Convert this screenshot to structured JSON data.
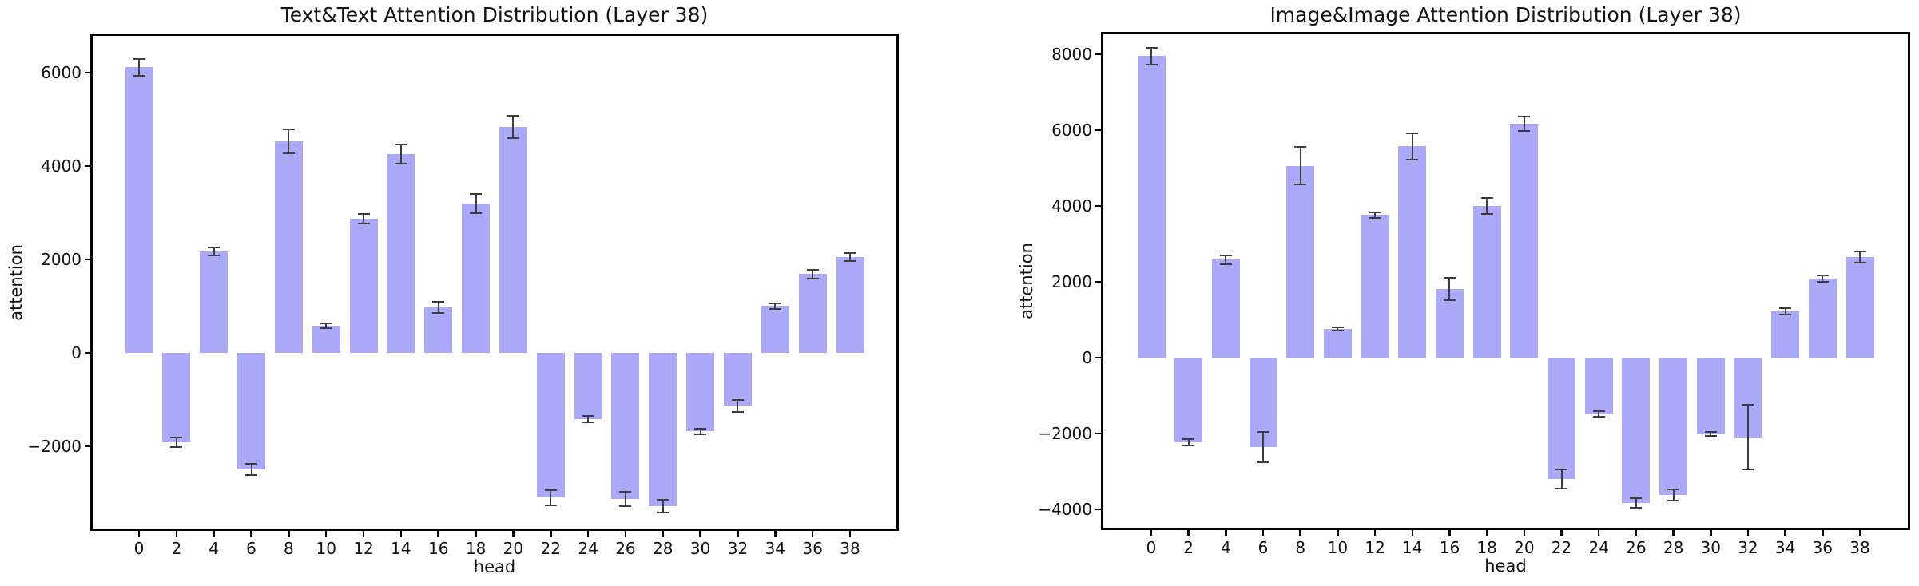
{
  "figure": {
    "background": "#ffffff",
    "bar_color": "#aaaaf8",
    "error_color": "#3d3d3d",
    "axis_color": "#000000",
    "text_color": "#131313"
  },
  "chart_data": [
    {
      "type": "bar",
      "title": "Text&Text Attention Distribution (Layer 38)",
      "xlabel": "head",
      "ylabel": "attention",
      "grid": false,
      "legend": null,
      "categories": [
        0,
        2,
        4,
        6,
        8,
        10,
        12,
        14,
        16,
        18,
        20,
        22,
        24,
        26,
        28,
        30,
        32,
        34,
        36,
        38
      ],
      "values": [
        6120,
        -1910,
        2170,
        -2500,
        4530,
        580,
        2870,
        4260,
        980,
        3200,
        4840,
        -3100,
        -1420,
        -3130,
        -3280,
        -1680,
        -1130,
        1010,
        1690,
        2050
      ],
      "errors": [
        180,
        100,
        90,
        120,
        260,
        50,
        100,
        200,
        120,
        200,
        240,
        160,
        70,
        150,
        140,
        60,
        130,
        60,
        90,
        90
      ],
      "ylim": [
        -3810,
        6840
      ],
      "yticks": [
        -2000,
        0,
        2000,
        4000,
        6000
      ]
    },
    {
      "type": "bar",
      "title": "Image&Image Attention Distribution (Layer 38)",
      "xlabel": "head",
      "ylabel": "attention",
      "grid": false,
      "legend": null,
      "categories": [
        0,
        2,
        4,
        6,
        8,
        10,
        12,
        14,
        16,
        18,
        20,
        22,
        24,
        26,
        28,
        30,
        32,
        34,
        36,
        38
      ],
      "values": [
        7950,
        -2230,
        2580,
        -2350,
        5060,
        760,
        3760,
        5570,
        1810,
        3990,
        6170,
        -3210,
        -1490,
        -3840,
        -3630,
        -2020,
        -2100,
        1220,
        2080,
        2650
      ],
      "errors": [
        220,
        80,
        120,
        400,
        500,
        40,
        80,
        340,
        290,
        210,
        190,
        250,
        80,
        130,
        150,
        50,
        860,
        90,
        90,
        150
      ],
      "ylim": [
        -4550,
        8590
      ],
      "yticks": [
        -4000,
        -2000,
        0,
        2000,
        4000,
        6000,
        8000
      ]
    }
  ]
}
